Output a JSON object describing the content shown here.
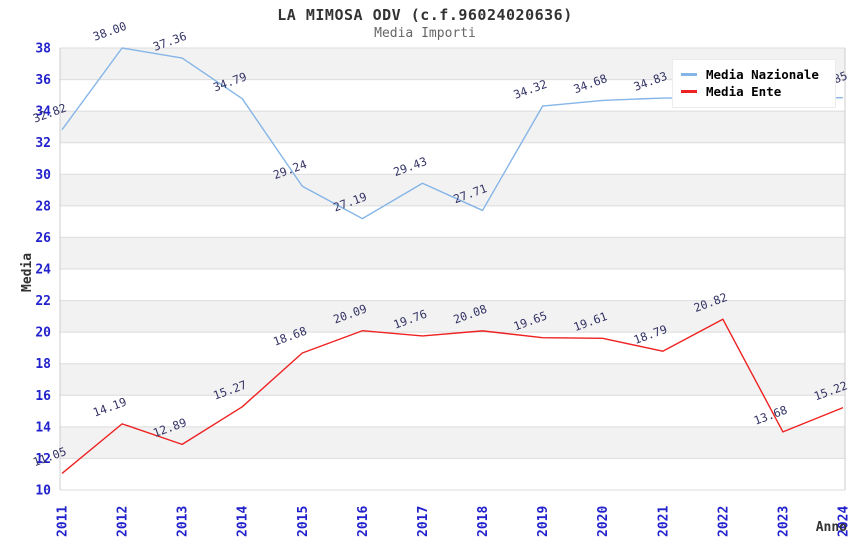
{
  "page": {
    "background": "#ffffff"
  },
  "chart_data": {
    "type": "line",
    "title": "LA MIMOSA ODV (c.f.96024020636)",
    "subtitle": "Media Importi",
    "xlabel": "Anno",
    "ylabel": "Media",
    "x_categories": [
      "2011",
      "2012",
      "2013",
      "2014",
      "2015",
      "2016",
      "2017",
      "2018",
      "2019",
      "2020",
      "2021",
      "2022",
      "2023",
      "2024"
    ],
    "ylim": [
      10,
      38
    ],
    "ytick_step": 2,
    "grid": "horizontal-stripes",
    "legend_position": "top-right",
    "series": [
      {
        "name": "Media Nazionale",
        "color": "#85b5e7",
        "values": [
          32.82,
          38.0,
          37.36,
          34.79,
          29.24,
          27.19,
          29.43,
          27.71,
          34.32,
          34.68,
          34.83,
          34.84,
          34.84,
          34.85
        ],
        "labels": [
          "32.82",
          "38.00",
          "37.36",
          "34.79",
          "29.24",
          "27.19",
          "29.43",
          "27.71",
          "34.32",
          "34.68",
          "34.83",
          "",
          "",
          "34.85"
        ]
      },
      {
        "name": "Media Ente",
        "color": "#ee2222",
        "values": [
          11.05,
          14.19,
          12.89,
          15.27,
          18.68,
          20.09,
          19.76,
          20.08,
          19.65,
          19.61,
          18.79,
          20.82,
          13.68,
          15.22
        ],
        "labels": [
          "11.05",
          "14.19",
          "12.89",
          "15.27",
          "18.68",
          "20.09",
          "19.76",
          "20.08",
          "19.65",
          "19.61",
          "18.79",
          "20.82",
          "13.68",
          "15.22"
        ]
      }
    ],
    "colors": {
      "tick_label": "#2222cc",
      "point_label": "#333366",
      "stripe": "#f2f2f2",
      "gridline": "#dcdcdc",
      "plot_border": "#cccccc",
      "axis_title": "#333333",
      "title": "#333333",
      "subtitle": "#666666"
    }
  }
}
